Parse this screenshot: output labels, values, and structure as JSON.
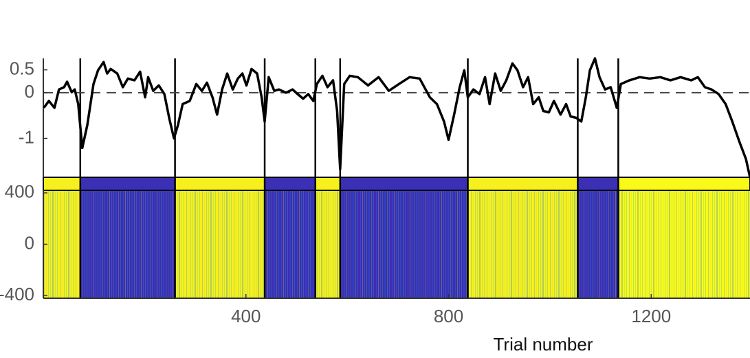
{
  "chart_data": [
    {
      "type": "line",
      "color": "#000000",
      "x": [
        1,
        11,
        22,
        31,
        41,
        47,
        56,
        62,
        69,
        77,
        87,
        99,
        108,
        119,
        126,
        133,
        146,
        157,
        167,
        180,
        191,
        201,
        207,
        217,
        228,
        239,
        249,
        258,
        266,
        275,
        289,
        302,
        313,
        323,
        334,
        343,
        353,
        363,
        374,
        384,
        393,
        401,
        411,
        422,
        431,
        437,
        445,
        456,
        465,
        479,
        492,
        502,
        513,
        523,
        533,
        540,
        551,
        561,
        572,
        580,
        586,
        594,
        605,
        621,
        641,
        662,
        682,
        702,
        723,
        743,
        763,
        777,
        791,
        800,
        811,
        822,
        831,
        838,
        849,
        861,
        872,
        881,
        892,
        903,
        914,
        926,
        936,
        947,
        957,
        967,
        978,
        987,
        998,
        1008,
        1021,
        1032,
        1041,
        1052,
        1062,
        1071,
        1079,
        1089,
        1098,
        1109,
        1120,
        1132,
        1140,
        1157,
        1177,
        1197,
        1218,
        1238,
        1258,
        1279,
        1292,
        1306,
        1319,
        1333,
        1347,
        1360,
        1374,
        1387,
        1395
      ],
      "values": [
        -0.33,
        -0.18,
        -0.33,
        0.07,
        0.12,
        0.24,
        0.01,
        0.07,
        -0.25,
        -1.21,
        -0.7,
        0.19,
        0.49,
        0.67,
        0.42,
        0.52,
        0.42,
        0.12,
        0.31,
        0.27,
        0.46,
        -0.1,
        0.34,
        0.04,
        0.16,
        -0.03,
        -0.58,
        -1.0,
        -0.7,
        -0.25,
        -0.18,
        0.19,
        0.04,
        0.22,
        -0.1,
        -0.48,
        0.07,
        0.42,
        0.07,
        0.31,
        0.42,
        0.16,
        0.52,
        0.42,
        -0.1,
        -0.63,
        0.34,
        0.04,
        0.07,
        0,
        0.07,
        -0.03,
        -0.13,
        -0.03,
        -0.18,
        0.19,
        0.37,
        0.12,
        0.27,
        -0.4,
        -1.67,
        0.19,
        0.37,
        0.34,
        0.16,
        0.34,
        0.04,
        0.19,
        0.34,
        0.31,
        -0.1,
        -0.25,
        -0.63,
        -1.03,
        -0.48,
        0.12,
        0.49,
        -0.1,
        0.07,
        -0.03,
        0.34,
        -0.25,
        0.42,
        0.04,
        0.27,
        0.64,
        0.49,
        0.12,
        0.34,
        -0.25,
        -0.1,
        -0.4,
        -0.43,
        -0.18,
        -0.48,
        -0.25,
        -0.52,
        -0.55,
        -0.63,
        -0.1,
        0.49,
        0.75,
        0.34,
        0.07,
        0.12,
        -0.33,
        0.19,
        0.27,
        0.34,
        0.31,
        0.34,
        0.27,
        0.34,
        0.27,
        0.34,
        0.12,
        0.07,
        -0.03,
        -0.25,
        -0.63,
        -1.07,
        -1.45,
        -1.85
      ],
      "xlim": [
        0,
        1395
      ],
      "ylim": [
        -1.85,
        0.75
      ],
      "yticks": [
        -1,
        0,
        0.5
      ],
      "hline": 0
    },
    {
      "type": "heatmap",
      "boundaries": [
        73,
        260,
        437,
        537,
        586,
        838,
        1055,
        1135
      ],
      "block_colors": [
        "#f5f01e",
        "#3b2fb4",
        "#f5f01e",
        "#3b2fb4",
        "#f5f01e",
        "#3b2fb4",
        "#f5f01e",
        "#3b2fb4",
        "#f9f91a"
      ],
      "xlim": [
        0,
        1395
      ],
      "xticks": [
        400,
        800,
        1200
      ],
      "xlabel": "Trial number",
      "ylim": [
        -420,
        420
      ],
      "yticks": [
        -400,
        0,
        400
      ]
    }
  ]
}
